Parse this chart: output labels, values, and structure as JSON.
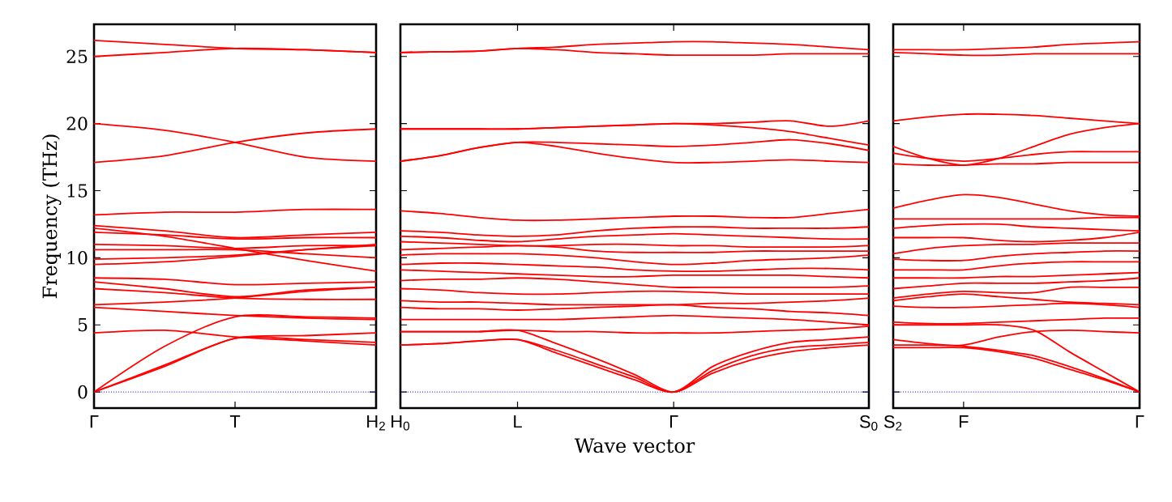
{
  "chart_data": [
    {
      "type": "line",
      "ylabel": "Frequency (THz)",
      "categories": [
        "Γ",
        null,
        "T",
        null,
        "H$_{2}$"
      ],
      "ylim": [
        -1.2,
        27.4
      ],
      "yticks": [
        0,
        5,
        10,
        15,
        20,
        25
      ],
      "ref_lines": [
        {
          "axis": "y",
          "value": 0,
          "color": "#0000ff",
          "line_style": "dotted"
        }
      ],
      "series": [
        {
          "color": "#ff0000",
          "values": [
            26.2,
            25.9,
            25.6,
            25.5,
            25.3
          ]
        },
        {
          "color": "#ff0000",
          "values": [
            25.0,
            25.3,
            25.6,
            25.5,
            25.3
          ]
        },
        {
          "color": "#ff0000",
          "values": [
            20.0,
            19.5,
            18.6,
            17.5,
            17.2
          ]
        },
        {
          "color": "#ff0000",
          "values": [
            17.1,
            17.6,
            18.6,
            19.3,
            19.6
          ]
        },
        {
          "color": "#ff0000",
          "values": [
            13.2,
            13.4,
            13.4,
            13.6,
            13.6
          ]
        },
        {
          "color": "#ff0000",
          "values": [
            12.4,
            12.0,
            11.5,
            11.7,
            11.9
          ]
        },
        {
          "color": "#ff0000",
          "values": [
            12.2,
            11.6,
            10.7,
            9.8,
            9.0
          ]
        },
        {
          "color": "#ff0000",
          "values": [
            11.9,
            11.7,
            11.4,
            11.5,
            11.5
          ]
        },
        {
          "color": "#ff0000",
          "values": [
            11.0,
            10.9,
            10.7,
            10.9,
            10.9
          ]
        },
        {
          "color": "#ff0000",
          "values": [
            10.6,
            10.6,
            10.6,
            10.3,
            10.0
          ]
        },
        {
          "color": "#ff0000",
          "values": [
            9.9,
            10.0,
            10.2,
            10.6,
            10.9
          ]
        },
        {
          "color": "#ff0000",
          "values": [
            9.5,
            9.7,
            10.1,
            10.6,
            11.0
          ]
        },
        {
          "color": "#ff0000",
          "values": [
            8.5,
            8.4,
            8.0,
            8.1,
            8.2
          ]
        },
        {
          "color": "#ff0000",
          "values": [
            8.2,
            7.7,
            7.1,
            7.6,
            7.8
          ]
        },
        {
          "color": "#ff0000",
          "values": [
            7.7,
            7.4,
            7.0,
            6.9,
            6.9
          ]
        },
        {
          "color": "#ff0000",
          "values": [
            6.5,
            6.7,
            7.0,
            7.5,
            7.8
          ]
        },
        {
          "color": "#ff0000",
          "values": [
            6.3,
            6.0,
            5.7,
            5.5,
            5.4
          ]
        },
        {
          "color": "#ff0000",
          "values": [
            4.4,
            4.6,
            4.1,
            3.8,
            3.5
          ]
        },
        {
          "color": "#ff0000",
          "values": [
            0,
            3.4,
            5.6,
            5.6,
            5.5
          ]
        },
        {
          "color": "#ff0000",
          "values": [
            0,
            2.0,
            4.0,
            4.2,
            4.4
          ]
        },
        {
          "color": "#ff0000",
          "values": [
            0,
            1.9,
            4.0,
            3.9,
            3.7
          ]
        }
      ]
    },
    {
      "type": "line",
      "xlabel": "Wave vector",
      "categories": [
        "H$_{0}$",
        null,
        null,
        "L",
        null,
        null,
        null,
        "Γ",
        null,
        null,
        null,
        null,
        "S$_{0}$"
      ],
      "ylim": [
        -1.2,
        27.4
      ],
      "yticks": [
        0,
        5,
        10,
        15,
        20,
        25
      ],
      "tick_labels": "x",
      "ref_lines": [
        {
          "axis": "y",
          "value": 0,
          "color": "#0000ff",
          "line_style": "dotted"
        }
      ],
      "series": [
        {
          "color": "#ff0000",
          "values": [
            25.3,
            25.35,
            25.4,
            25.6,
            25.7,
            25.9,
            26.0,
            26.1,
            26.1,
            26.0,
            25.9,
            25.7,
            25.5
          ]
        },
        {
          "color": "#ff0000",
          "values": [
            25.3,
            25.35,
            25.4,
            25.6,
            25.5,
            25.3,
            25.2,
            25.1,
            25.1,
            25.1,
            25.2,
            25.2,
            25.2
          ]
        },
        {
          "color": "#ff0000",
          "values": [
            19.6,
            19.6,
            19.6,
            19.6,
            19.7,
            19.8,
            19.9,
            20.0,
            20.0,
            20.1,
            20.2,
            19.8,
            20.2
          ]
        },
        {
          "color": "#ff0000",
          "values": [
            19.6,
            19.6,
            19.6,
            19.6,
            19.7,
            19.8,
            19.9,
            20.0,
            19.9,
            19.7,
            19.4,
            18.9,
            18.4
          ]
        },
        {
          "color": "#ff0000",
          "values": [
            17.2,
            17.6,
            18.2,
            18.6,
            18.6,
            18.5,
            18.4,
            18.3,
            18.4,
            18.6,
            18.8,
            18.5,
            18.0
          ]
        },
        {
          "color": "#ff0000",
          "values": [
            17.2,
            17.6,
            18.2,
            18.6,
            18.3,
            17.8,
            17.4,
            17.1,
            17.1,
            17.2,
            17.3,
            17.2,
            17.1
          ]
        },
        {
          "color": "#ff0000",
          "values": [
            13.5,
            13.3,
            13.0,
            12.8,
            12.8,
            12.9,
            13.0,
            13.1,
            13.1,
            13.0,
            13.0,
            13.3,
            13.6
          ]
        },
        {
          "color": "#ff0000",
          "values": [
            12.0,
            11.9,
            11.7,
            11.6,
            11.7,
            12.0,
            12.2,
            12.3,
            12.3,
            12.2,
            12.2,
            12.2,
            12.3
          ]
        },
        {
          "color": "#ff0000",
          "values": [
            11.6,
            11.5,
            11.3,
            11.2,
            11.4,
            11.6,
            11.7,
            11.8,
            11.7,
            11.6,
            11.5,
            11.4,
            11.4
          ]
        },
        {
          "color": "#ff0000",
          "values": [
            11.2,
            11.1,
            11.0,
            10.9,
            10.9,
            11.0,
            11.0,
            10.9,
            10.9,
            10.8,
            10.8,
            10.8,
            10.9
          ]
        },
        {
          "color": "#ff0000",
          "values": [
            10.6,
            10.7,
            10.8,
            10.9,
            10.8,
            10.5,
            10.4,
            10.4,
            10.4,
            10.5,
            10.5,
            10.5,
            10.5
          ]
        },
        {
          "color": "#ff0000",
          "values": [
            10.2,
            10.3,
            10.3,
            10.3,
            10.2,
            10.0,
            9.7,
            9.5,
            9.6,
            9.8,
            9.9,
            10.0,
            10.2
          ]
        },
        {
          "color": "#ff0000",
          "values": [
            9.5,
            9.6,
            9.6,
            9.5,
            9.4,
            9.3,
            9.1,
            9.0,
            9.0,
            9.1,
            9.2,
            9.2,
            9.1
          ]
        },
        {
          "color": "#ff0000",
          "values": [
            9.1,
            9.0,
            8.9,
            8.8,
            8.7,
            8.6,
            8.6,
            8.7,
            8.7,
            8.7,
            8.7,
            8.6,
            8.5
          ]
        },
        {
          "color": "#ff0000",
          "values": [
            8.3,
            8.4,
            8.4,
            8.5,
            8.4,
            8.2,
            8.0,
            7.8,
            7.8,
            7.8,
            7.8,
            7.8,
            7.9
          ]
        },
        {
          "color": "#ff0000",
          "values": [
            7.7,
            7.6,
            7.4,
            7.3,
            7.3,
            7.4,
            7.5,
            7.5,
            7.4,
            7.3,
            7.3,
            7.3,
            7.3
          ]
        },
        {
          "color": "#ff0000",
          "values": [
            6.8,
            6.7,
            6.7,
            6.6,
            6.5,
            6.5,
            6.5,
            6.5,
            6.6,
            6.6,
            6.7,
            6.8,
            7.0
          ]
        },
        {
          "color": "#ff0000",
          "values": [
            6.3,
            6.2,
            6.2,
            6.1,
            6.2,
            6.3,
            6.4,
            6.5,
            6.3,
            6.2,
            6.0,
            5.9,
            5.7
          ]
        },
        {
          "color": "#ff0000",
          "values": [
            5.4,
            5.4,
            5.4,
            5.4,
            5.4,
            5.5,
            5.6,
            5.7,
            5.6,
            5.5,
            5.4,
            5.2,
            5.0
          ]
        },
        {
          "color": "#ff0000",
          "values": [
            4.5,
            4.5,
            4.5,
            4.6,
            4.5,
            4.5,
            4.4,
            4.4,
            4.4,
            4.5,
            4.6,
            4.7,
            4.9
          ]
        },
        {
          "color": "#ff0000",
          "values": [
            3.5,
            3.6,
            3.8,
            3.9,
            3.1,
            2.1,
            1.1,
            0,
            1.9,
            3.0,
            3.7,
            3.9,
            4.1
          ]
        },
        {
          "color": "#ff0000",
          "values": [
            3.5,
            3.6,
            3.8,
            3.9,
            2.9,
            1.9,
            0.9,
            0,
            1.6,
            2.7,
            3.3,
            3.5,
            3.7
          ]
        },
        {
          "color": "#ff0000",
          "values": [
            4.5,
            4.5,
            4.5,
            4.6,
            3.6,
            2.5,
            1.3,
            0,
            1.4,
            2.4,
            3.0,
            3.3,
            3.5
          ]
        }
      ]
    },
    {
      "type": "line",
      "categories": [
        "S$_{2}$",
        null,
        "F",
        null,
        null,
        null,
        null,
        "Γ"
      ],
      "ylim": [
        -1.2,
        27.4
      ],
      "yticks": [
        0,
        5,
        10,
        15,
        20,
        25
      ],
      "tick_labels": "x",
      "ref_lines": [
        {
          "axis": "y",
          "value": 0,
          "color": "#0000ff",
          "line_style": "dotted"
        }
      ],
      "series": [
        {
          "color": "#ff0000",
          "values": [
            25.5,
            25.5,
            25.5,
            25.6,
            25.7,
            25.9,
            26.0,
            26.1
          ]
        },
        {
          "color": "#ff0000",
          "values": [
            25.3,
            25.2,
            25.1,
            25.1,
            25.2,
            25.2,
            25.2,
            25.2
          ]
        },
        {
          "color": "#ff0000",
          "values": [
            20.2,
            20.5,
            20.7,
            20.7,
            20.6,
            20.4,
            20.2,
            20.0
          ]
        },
        {
          "color": "#ff0000",
          "values": [
            18.3,
            17.4,
            16.9,
            17.4,
            18.3,
            19.2,
            19.7,
            20.0
          ]
        },
        {
          "color": "#ff0000",
          "values": [
            17.8,
            17.4,
            17.2,
            17.4,
            17.7,
            17.9,
            17.9,
            17.9
          ]
        },
        {
          "color": "#ff0000",
          "values": [
            17.0,
            16.9,
            16.9,
            17.0,
            17.0,
            17.1,
            17.1,
            17.1
          ]
        },
        {
          "color": "#ff0000",
          "values": [
            13.7,
            14.3,
            14.7,
            14.5,
            14.0,
            13.5,
            13.2,
            13.1
          ]
        },
        {
          "color": "#ff0000",
          "values": [
            12.9,
            12.9,
            12.9,
            12.9,
            12.9,
            12.9,
            13.0,
            13.0
          ]
        },
        {
          "color": "#ff0000",
          "values": [
            12.2,
            12.4,
            12.5,
            12.5,
            12.3,
            12.2,
            12.1,
            12.0
          ]
        },
        {
          "color": "#ff0000",
          "values": [
            11.5,
            11.5,
            11.5,
            11.3,
            11.2,
            11.3,
            11.5,
            11.9
          ]
        },
        {
          "color": "#ff0000",
          "values": [
            10.3,
            10.7,
            10.9,
            11.0,
            11.0,
            11.1,
            11.1,
            11.1
          ]
        },
        {
          "color": "#ff0000",
          "values": [
            9.9,
            9.8,
            9.8,
            10.1,
            10.3,
            10.4,
            10.5,
            10.5
          ]
        },
        {
          "color": "#ff0000",
          "values": [
            9.1,
            9.1,
            9.1,
            9.4,
            9.6,
            9.7,
            9.7,
            9.7
          ]
        },
        {
          "color": "#ff0000",
          "values": [
            8.5,
            8.5,
            8.5,
            8.6,
            8.6,
            8.7,
            8.8,
            8.9
          ]
        },
        {
          "color": "#ff0000",
          "values": [
            7.7,
            7.9,
            8.1,
            8.1,
            8.1,
            8.2,
            8.3,
            8.5
          ]
        },
        {
          "color": "#ff0000",
          "values": [
            7.0,
            7.3,
            7.5,
            7.4,
            7.4,
            7.8,
            7.8,
            7.8
          ]
        },
        {
          "color": "#ff0000",
          "values": [
            6.8,
            7.1,
            7.3,
            7.1,
            6.9,
            6.7,
            6.6,
            6.5
          ]
        },
        {
          "color": "#ff0000",
          "values": [
            6.4,
            6.3,
            6.3,
            6.4,
            6.5,
            6.6,
            6.5,
            6.3
          ]
        },
        {
          "color": "#ff0000",
          "values": [
            5.2,
            5.1,
            5.1,
            5.2,
            5.3,
            5.4,
            5.5,
            5.5
          ]
        },
        {
          "color": "#ff0000",
          "values": [
            3.5,
            3.5,
            3.5,
            4.1,
            4.5,
            4.6,
            4.5,
            4.4
          ]
        },
        {
          "color": "#ff0000",
          "values": [
            3.9,
            3.6,
            3.4,
            3.1,
            2.7,
            1.9,
            1.0,
            0
          ]
        },
        {
          "color": "#ff0000",
          "values": [
            3.3,
            3.3,
            3.3,
            3.0,
            2.5,
            1.7,
            0.9,
            0
          ]
        },
        {
          "color": "#ff0000",
          "values": [
            5.0,
            5.0,
            5.0,
            5.0,
            4.6,
            3.0,
            1.5,
            0
          ]
        }
      ]
    }
  ]
}
